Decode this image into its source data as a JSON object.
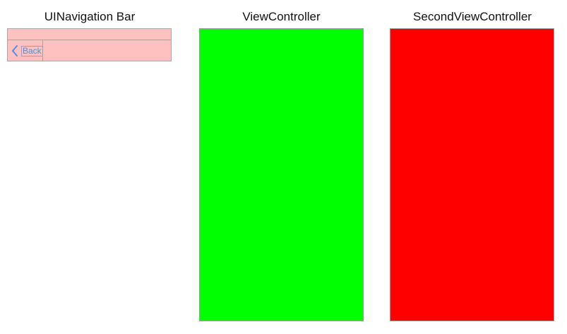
{
  "panels": {
    "navigation_bar": {
      "title": "UINavigation Bar",
      "background_color": "#ffc0c0",
      "back_button": {
        "label": "Back",
        "icon": "chevron-left-icon",
        "tint_color": "#4a90e2"
      }
    },
    "view_controller": {
      "title": "ViewController",
      "background_color": "#00ff00"
    },
    "second_view_controller": {
      "title": "SecondViewController",
      "background_color": "#ff0000"
    }
  }
}
